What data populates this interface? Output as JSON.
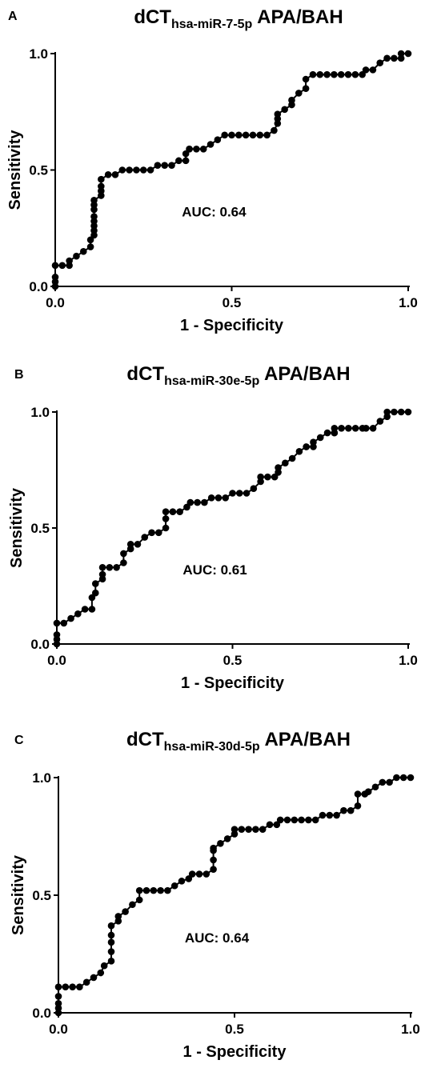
{
  "chart_data": [
    {
      "type": "line",
      "panel_label": "A",
      "title": {
        "main": "dCT",
        "subscript": "hsa-miR-7-5p",
        "suffix": " APA/BAH"
      },
      "xlabel": "1 - Specificity",
      "ylabel": "Sensitivity",
      "xlim": [
        0,
        1
      ],
      "ylim": [
        0,
        1
      ],
      "xticks": [
        "0.0",
        "0.5",
        "1.0"
      ],
      "yticks": [
        "0.0",
        "0.5",
        "1.0"
      ],
      "annotation": "AUC: 0.64",
      "grid": false,
      "marker": "filled-circle",
      "color": "#000000",
      "series": [
        {
          "x": [
            0,
            0,
            0,
            0,
            0.02,
            0.04,
            0.04,
            0.06,
            0.08,
            0.1,
            0.1,
            0.11,
            0.11,
            0.11,
            0.11,
            0.11,
            0.11,
            0.11,
            0.11,
            0.13,
            0.13,
            0.13,
            0.13,
            0.15,
            0.17,
            0.19,
            0.21,
            0.23,
            0.25,
            0.27,
            0.29,
            0.31,
            0.33,
            0.35,
            0.37,
            0.37,
            0.38,
            0.38,
            0.4,
            0.42,
            0.44,
            0.46,
            0.48,
            0.5,
            0.52,
            0.54,
            0.56,
            0.58,
            0.6,
            0.62,
            0.63,
            0.63,
            0.63,
            0.65,
            0.67,
            0.67,
            0.69,
            0.71,
            0.71,
            0.73,
            0.75,
            0.77,
            0.79,
            0.81,
            0.83,
            0.85,
            0.87,
            0.88,
            0.9,
            0.92,
            0.94,
            0.96,
            0.98,
            0.98,
            1.0
          ],
          "y": [
            0,
            0.02,
            0.04,
            0.09,
            0.09,
            0.09,
            0.11,
            0.13,
            0.15,
            0.17,
            0.2,
            0.22,
            0.24,
            0.26,
            0.28,
            0.3,
            0.33,
            0.35,
            0.37,
            0.39,
            0.41,
            0.43,
            0.46,
            0.48,
            0.48,
            0.5,
            0.5,
            0.5,
            0.5,
            0.5,
            0.52,
            0.52,
            0.52,
            0.54,
            0.54,
            0.57,
            0.59,
            0.59,
            0.59,
            0.59,
            0.61,
            0.63,
            0.65,
            0.65,
            0.65,
            0.65,
            0.65,
            0.65,
            0.65,
            0.67,
            0.7,
            0.72,
            0.74,
            0.76,
            0.78,
            0.8,
            0.83,
            0.85,
            0.89,
            0.91,
            0.91,
            0.91,
            0.91,
            0.91,
            0.91,
            0.91,
            0.91,
            0.93,
            0.93,
            0.96,
            0.98,
            0.98,
            0.98,
            1.0,
            1.0
          ]
        }
      ]
    },
    {
      "type": "line",
      "panel_label": "B",
      "title": {
        "main": "dCT",
        "subscript": "hsa-miR-30e-5p",
        "suffix": " APA/BAH"
      },
      "xlabel": "1 - Specificity",
      "ylabel": "Sensitivity",
      "xlim": [
        0,
        1
      ],
      "ylim": [
        0,
        1
      ],
      "xticks": [
        "0.0",
        "0.5",
        "1.0"
      ],
      "yticks": [
        "0.0",
        "0.5",
        "1.0"
      ],
      "annotation": "AUC: 0.61",
      "grid": false,
      "marker": "filled-circle",
      "color": "#000000",
      "series": [
        {
          "x": [
            0,
            0,
            0,
            0,
            0.02,
            0.04,
            0.06,
            0.08,
            0.1,
            0.1,
            0.11,
            0.11,
            0.13,
            0.13,
            0.13,
            0.15,
            0.17,
            0.19,
            0.19,
            0.21,
            0.21,
            0.23,
            0.25,
            0.27,
            0.29,
            0.31,
            0.31,
            0.31,
            0.33,
            0.35,
            0.37,
            0.38,
            0.4,
            0.42,
            0.44,
            0.46,
            0.48,
            0.5,
            0.52,
            0.54,
            0.56,
            0.58,
            0.58,
            0.6,
            0.62,
            0.63,
            0.63,
            0.65,
            0.67,
            0.69,
            0.71,
            0.71,
            0.73,
            0.73,
            0.75,
            0.77,
            0.79,
            0.79,
            0.79,
            0.81,
            0.83,
            0.85,
            0.87,
            0.88,
            0.9,
            0.92,
            0.94,
            0.94,
            0.96,
            0.98,
            1.0
          ],
          "y": [
            0,
            0.02,
            0.04,
            0.09,
            0.09,
            0.11,
            0.13,
            0.15,
            0.15,
            0.2,
            0.22,
            0.26,
            0.28,
            0.3,
            0.33,
            0.33,
            0.33,
            0.35,
            0.39,
            0.41,
            0.43,
            0.43,
            0.46,
            0.48,
            0.48,
            0.5,
            0.54,
            0.57,
            0.57,
            0.57,
            0.59,
            0.61,
            0.61,
            0.61,
            0.63,
            0.63,
            0.63,
            0.65,
            0.65,
            0.65,
            0.67,
            0.7,
            0.72,
            0.72,
            0.72,
            0.74,
            0.76,
            0.78,
            0.8,
            0.83,
            0.85,
            0.85,
            0.85,
            0.87,
            0.89,
            0.91,
            0.91,
            0.91,
            0.93,
            0.93,
            0.93,
            0.93,
            0.93,
            0.93,
            0.93,
            0.96,
            0.98,
            1.0,
            1.0,
            1.0,
            1.0
          ]
        }
      ]
    },
    {
      "type": "line",
      "panel_label": "C",
      "title": {
        "main": "dCT",
        "subscript": "hsa-miR-30d-5p",
        "suffix": " APA/BAH"
      },
      "xlabel": "1 - Specificity",
      "ylabel": "Sensitivity",
      "xlim": [
        0,
        1
      ],
      "ylim": [
        0,
        1
      ],
      "xticks": [
        "0.0",
        "0.5",
        "1.0"
      ],
      "yticks": [
        "0.0",
        "0.5",
        "1.0"
      ],
      "annotation": "AUC: 0.64",
      "grid": false,
      "marker": "filled-circle",
      "color": "#000000",
      "series": [
        {
          "x": [
            0,
            0,
            0,
            0,
            0,
            0.02,
            0.04,
            0.06,
            0.08,
            0.1,
            0.12,
            0.13,
            0.15,
            0.15,
            0.15,
            0.15,
            0.15,
            0.17,
            0.17,
            0.19,
            0.21,
            0.23,
            0.23,
            0.25,
            0.27,
            0.29,
            0.31,
            0.33,
            0.35,
            0.37,
            0.38,
            0.4,
            0.42,
            0.44,
            0.44,
            0.44,
            0.44,
            0.46,
            0.48,
            0.5,
            0.5,
            0.52,
            0.54,
            0.56,
            0.58,
            0.6,
            0.62,
            0.63,
            0.65,
            0.67,
            0.69,
            0.71,
            0.73,
            0.75,
            0.77,
            0.79,
            0.81,
            0.83,
            0.85,
            0.85,
            0.87,
            0.88,
            0.9,
            0.92,
            0.94,
            0.96,
            0.98,
            1.0
          ],
          "y": [
            0,
            0.02,
            0.04,
            0.07,
            0.11,
            0.11,
            0.11,
            0.11,
            0.13,
            0.15,
            0.17,
            0.2,
            0.22,
            0.26,
            0.3,
            0.33,
            0.37,
            0.39,
            0.41,
            0.43,
            0.46,
            0.48,
            0.52,
            0.52,
            0.52,
            0.52,
            0.52,
            0.54,
            0.56,
            0.57,
            0.59,
            0.59,
            0.59,
            0.61,
            0.65,
            0.69,
            0.7,
            0.72,
            0.74,
            0.76,
            0.78,
            0.78,
            0.78,
            0.78,
            0.78,
            0.8,
            0.8,
            0.82,
            0.82,
            0.82,
            0.82,
            0.82,
            0.82,
            0.84,
            0.84,
            0.84,
            0.86,
            0.86,
            0.88,
            0.93,
            0.93,
            0.94,
            0.96,
            0.98,
            0.98,
            1.0,
            1.0,
            1.0
          ]
        }
      ]
    }
  ]
}
